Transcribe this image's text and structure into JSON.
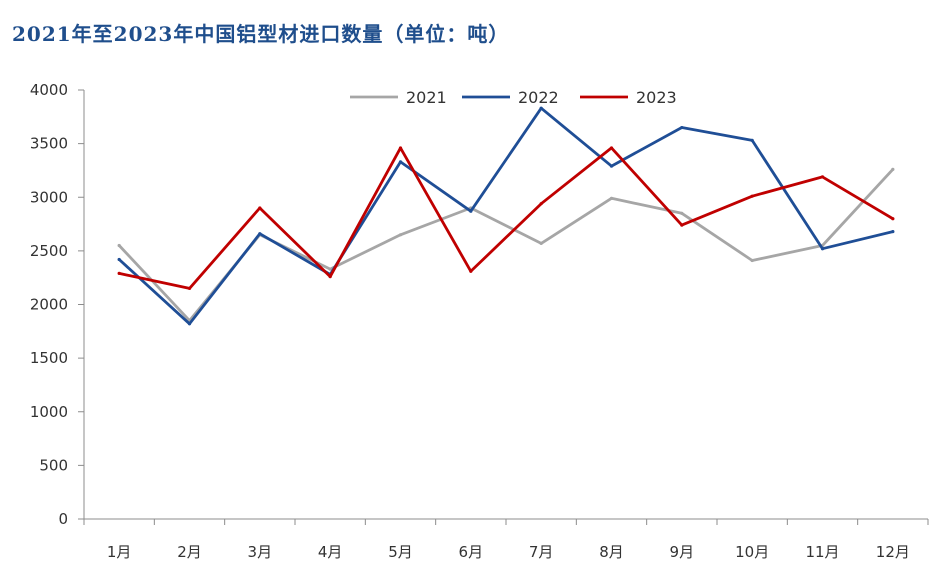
{
  "chart_data": {
    "type": "line",
    "title": "2021年至2023年中国铝型材进口数量（单位：吨）",
    "categories": [
      "1月",
      "2月",
      "3月",
      "4月",
      "5月",
      "6月",
      "7月",
      "8月",
      "9月",
      "10月",
      "11月",
      "12月"
    ],
    "series": [
      {
        "name": "2021",
        "color": "#a6a6a6",
        "values": [
          2550,
          1850,
          2650,
          2330,
          2650,
          2900,
          2570,
          2990,
          2850,
          2410,
          2550,
          3260
        ]
      },
      {
        "name": "2022",
        "color": "#1f4e96",
        "values": [
          2420,
          1820,
          2660,
          2280,
          3330,
          2870,
          3830,
          3290,
          3650,
          3530,
          2520,
          2680
        ]
      },
      {
        "name": "2023",
        "color": "#c00000",
        "values": [
          2290,
          2150,
          2900,
          2260,
          3460,
          2310,
          2940,
          3460,
          2740,
          3010,
          3190,
          2800
        ]
      }
    ],
    "ylim": [
      0,
      4000
    ],
    "yticks": [
      0,
      500,
      1000,
      1500,
      2000,
      2500,
      3000,
      3500,
      4000
    ],
    "grid": false,
    "legend": "top-center"
  }
}
